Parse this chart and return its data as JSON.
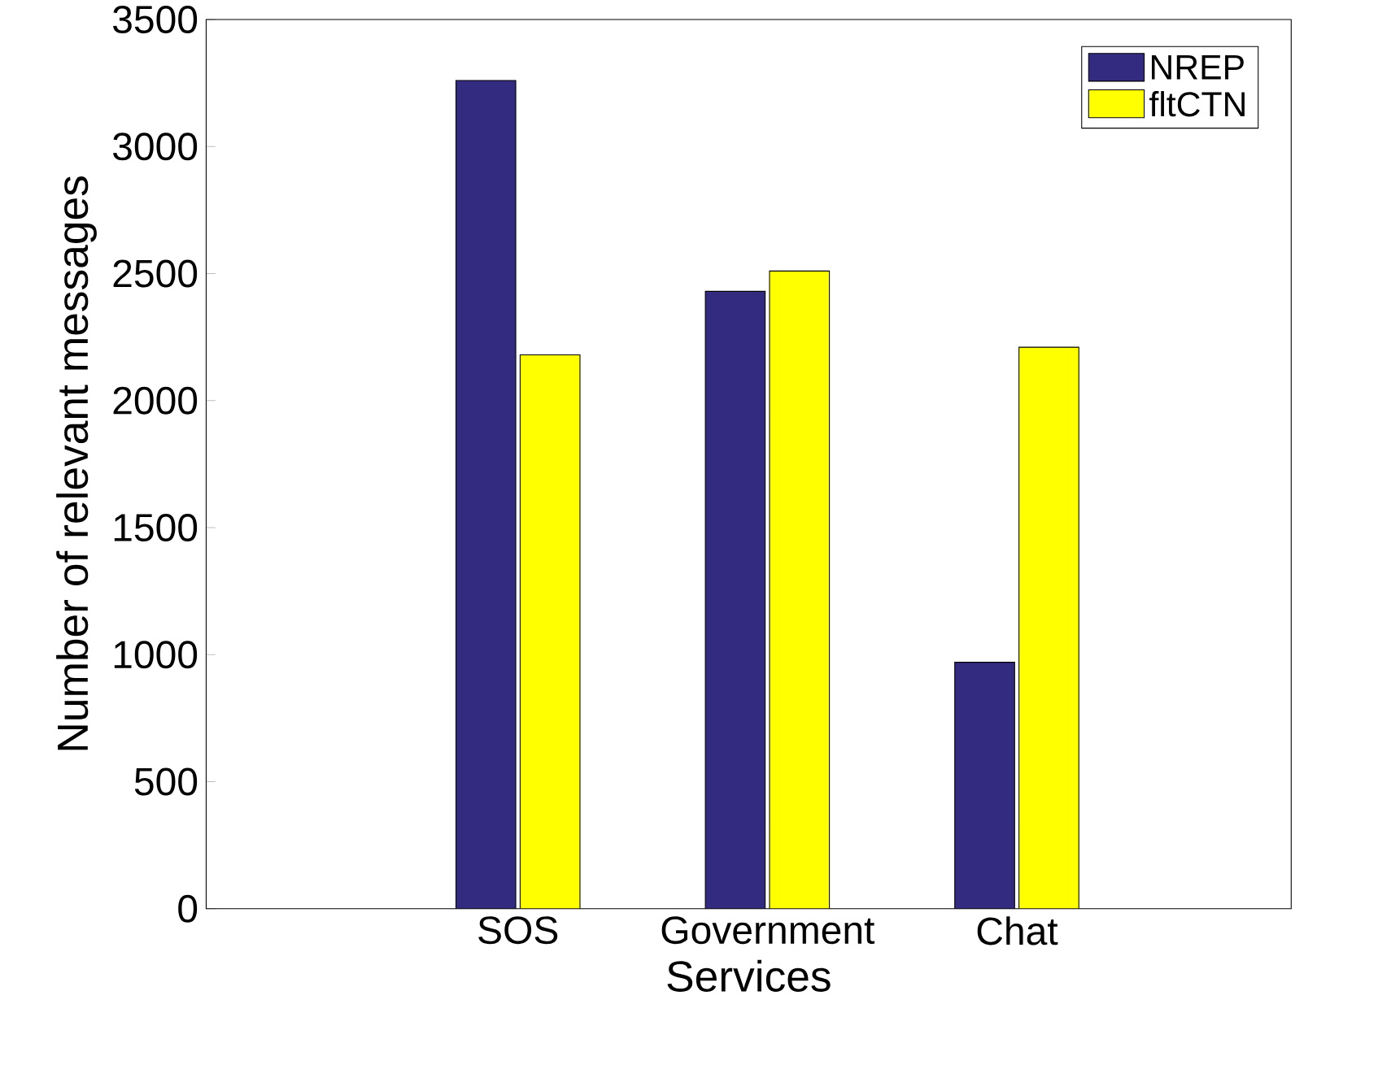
{
  "chart_data": {
    "type": "bar",
    "xlabel": "Services",
    "ylabel": "Number of relevant messages",
    "categories": [
      "SOS",
      "Government",
      "Chat"
    ],
    "series": [
      {
        "name": "NREP",
        "color": "#332b80",
        "values": [
          3260,
          2430,
          970
        ]
      },
      {
        "name": "fltCTN",
        "color": "#ffff00",
        "values": [
          2180,
          2510,
          2210
        ]
      }
    ],
    "ylim": [
      0,
      3500
    ],
    "yticks": [
      0,
      500,
      1000,
      1500,
      2000,
      2500,
      3000,
      3500
    ],
    "grid": false,
    "legend": "top right"
  }
}
